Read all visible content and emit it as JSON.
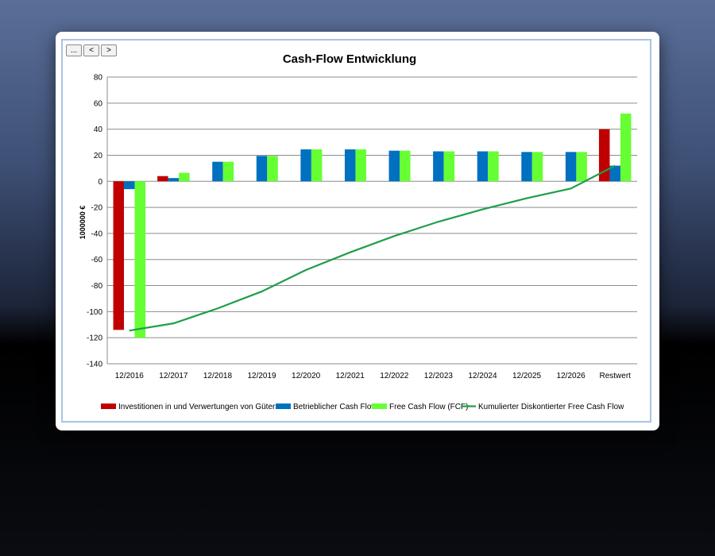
{
  "nav": {
    "more_label": "...",
    "prev_label": "<",
    "next_label": ">"
  },
  "chart_data": {
    "type": "bar",
    "title": "Cash-Flow Entwicklung",
    "xlabel": "",
    "ylabel": "1000000 €",
    "ylim": [
      -140,
      80
    ],
    "yticks": [
      80,
      60,
      40,
      20,
      0,
      -20,
      -40,
      -60,
      -80,
      -100,
      -120,
      -140
    ],
    "grid": true,
    "legend_position": "bottom",
    "categories": [
      "12/2016",
      "12/2017",
      "12/2018",
      "12/2019",
      "12/2020",
      "12/2021",
      "12/2022",
      "12/2023",
      "12/2024",
      "12/2025",
      "12/2026",
      "Restwert"
    ],
    "series": [
      {
        "name": "Investitionen in und Verwertungen von Gütern",
        "type": "bar",
        "color": "#c00000",
        "values": [
          -114,
          4,
          0,
          0,
          0,
          0,
          0,
          0,
          0,
          0,
          0,
          40
        ]
      },
      {
        "name": "Betrieblicher Cash Flow",
        "type": "bar",
        "color": "#0070c0",
        "values": [
          -6,
          2.5,
          15,
          19.5,
          24.5,
          24.5,
          23.5,
          23,
          23,
          22.5,
          22.5,
          12
        ]
      },
      {
        "name": "Free Cash Flow (FCF)",
        "type": "bar",
        "color": "#66ff33",
        "values": [
          -120,
          6.5,
          15,
          19.5,
          24.5,
          24.5,
          23.5,
          23,
          23,
          22.5,
          22.5,
          52
        ]
      },
      {
        "name": "Kumulierter Diskontierter Free Cash Flow",
        "type": "line",
        "color": "#1f9e4a",
        "values": [
          -114.5,
          -109,
          -97.5,
          -84.5,
          -68,
          -54.5,
          -42,
          -31,
          -21.5,
          -13,
          -5.5,
          12
        ]
      }
    ]
  }
}
